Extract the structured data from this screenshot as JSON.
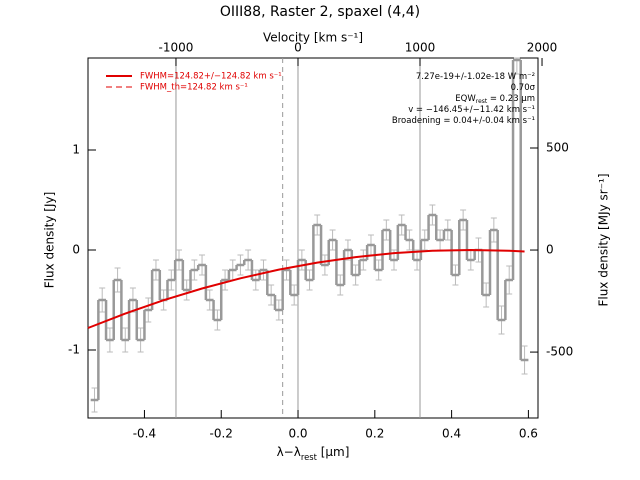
{
  "chart_data": {
    "type": "step",
    "title": "OIII88, Raster 2, spaxel (4,4)",
    "x_label": {
      "main": "λ−λ",
      "sub": "rest",
      "tail": " [μm]"
    },
    "x2_label": "Velocity [km s⁻¹]",
    "y_label": "Flux density [Jy]",
    "y2_label": "Flux density [MJy sr⁻¹]",
    "xlim": [
      -0.547,
      0.625
    ],
    "xticks": [
      -0.4,
      -0.2,
      {
        "value": 0,
        "label": "0.0"
      },
      0.2,
      0.4,
      0.6
    ],
    "x2lim": [
      -1721,
      1967
    ],
    "x2ticks": [
      -1000,
      0,
      1000,
      2000
    ],
    "x2grid": true,
    "ylim": [
      -1.68,
      1.92
    ],
    "yticks": [
      -1,
      0,
      1
    ],
    "y2lim": [
      -823,
      941
    ],
    "y2ticks": [
      -500,
      0,
      500
    ],
    "reference_line_x": -0.04,
    "spectrum": {
      "color": "#999999",
      "x": [
        -0.53,
        -0.51,
        -0.49,
        -0.47,
        -0.45,
        -0.43,
        -0.41,
        -0.39,
        -0.37,
        -0.35,
        -0.33,
        -0.31,
        -0.29,
        -0.27,
        -0.25,
        -0.23,
        -0.21,
        -0.19,
        -0.17,
        -0.15,
        -0.13,
        -0.11,
        -0.09,
        -0.07,
        -0.05,
        -0.03,
        -0.01,
        0.01,
        0.03,
        0.05,
        0.07,
        0.09,
        0.11,
        0.13,
        0.15,
        0.17,
        0.19,
        0.21,
        0.23,
        0.25,
        0.27,
        0.29,
        0.31,
        0.33,
        0.35,
        0.37,
        0.39,
        0.41,
        0.43,
        0.45,
        0.47,
        0.49,
        0.51,
        0.53,
        0.55,
        0.57,
        0.59
      ],
      "values": [
        -1.5,
        -0.5,
        -0.9,
        -0.3,
        -0.9,
        -0.5,
        -0.9,
        -0.6,
        -0.2,
        -0.5,
        -0.3,
        -0.1,
        -0.4,
        -0.2,
        -0.15,
        -0.5,
        -0.7,
        -0.3,
        -0.2,
        -0.15,
        -0.1,
        -0.3,
        -0.2,
        -0.45,
        -0.6,
        -0.2,
        -0.45,
        -0.1,
        -0.3,
        0.25,
        -0.15,
        0.1,
        -0.35,
        0.0,
        -0.25,
        -0.1,
        0.05,
        -0.2,
        0.2,
        -0.1,
        0.25,
        0.1,
        -0.1,
        0.1,
        0.35,
        0.1,
        0.2,
        -0.25,
        0.3,
        -0.1,
        0.0,
        -0.45,
        0.2,
        -0.7,
        -0.3,
        1.9,
        -1.1
      ],
      "errors": [
        0.12,
        0.12,
        0.12,
        0.12,
        0.12,
        0.12,
        0.12,
        0.12,
        0.1,
        0.1,
        0.1,
        0.1,
        0.1,
        0.1,
        0.1,
        0.1,
        0.1,
        0.1,
        0.1,
        0.1,
        0.1,
        0.1,
        0.1,
        0.1,
        0.1,
        0.1,
        0.1,
        0.1,
        0.1,
        0.1,
        0.1,
        0.1,
        0.1,
        0.1,
        0.1,
        0.1,
        0.1,
        0.1,
        0.1,
        0.1,
        0.1,
        0.1,
        0.1,
        0.1,
        0.1,
        0.1,
        0.1,
        0.1,
        0.1,
        0.1,
        0.12,
        0.12,
        0.12,
        0.14,
        0.14,
        0.14,
        0.14
      ]
    },
    "fit": {
      "color": "#e00000",
      "x": [
        -0.547,
        -0.45,
        -0.35,
        -0.25,
        -0.15,
        -0.05,
        0.05,
        0.15,
        0.25,
        0.35,
        0.45,
        0.55,
        0.59
      ],
      "values": [
        -0.78,
        -0.636,
        -0.502,
        -0.385,
        -0.283,
        -0.196,
        -0.126,
        -0.071,
        -0.031,
        -0.008,
        0,
        -0.008,
        -0.015
      ]
    },
    "legend": [
      "FWHM=124.82+/−124.82 km s⁻¹",
      "FWHM_th=124.82 km s⁻¹"
    ],
    "annotations": [
      {
        "main": "7.27e-19+/-1.02e-18 W m⁻²"
      },
      {
        "main": "0.70σ"
      },
      {
        "main": "EQW",
        "sub": "rest",
        "tail": " = 0.23 μm"
      },
      {
        "main": "v = −146.45+/−11.42 km s⁻¹"
      },
      {
        "main": "Broadening = 0.04+/-0.04 km s⁻¹"
      }
    ]
  }
}
